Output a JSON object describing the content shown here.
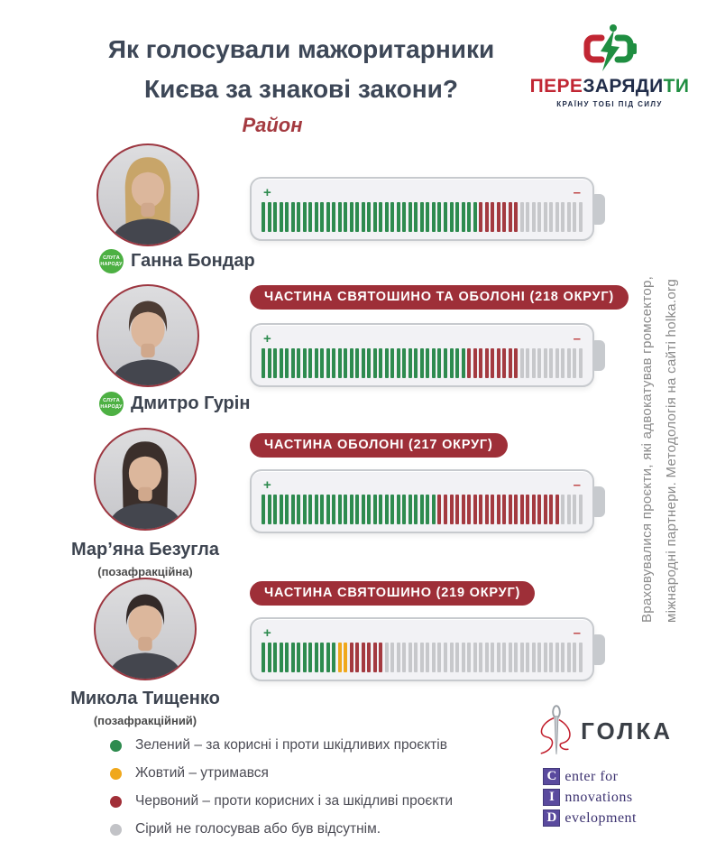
{
  "page": {
    "title_line1": "Як голосували мажоритарники",
    "title_line2": "Києва за знакові закони?",
    "region_label": "Район"
  },
  "brand": {
    "name_red": "ПЕРЕ",
    "name_dark": "ЗАРЯДИ",
    "name_green": "ТИ",
    "tagline": "КРАЇНУ ТОБІ ПІД СИЛУ"
  },
  "battery_signs": {
    "plus": "+",
    "minus": "–"
  },
  "deputies": [
    {
      "name": "Ганна Бондар",
      "badge": [
        "СЛУГА",
        "НАРОДУ"
      ],
      "district": "",
      "subtitle": "",
      "votes": {
        "green": 37,
        "yellow": 0,
        "red": 7,
        "gray": 11
      }
    },
    {
      "name": "Дмитро Гурін",
      "badge": [
        "СЛУГА",
        "НАРОДУ"
      ],
      "district": "ЧАСТИНА СВЯТОШИНО ТА ОБОЛОНІ (218 ОКРУГ)",
      "subtitle": "",
      "votes": {
        "green": 35,
        "yellow": 0,
        "red": 9,
        "gray": 11
      }
    },
    {
      "name": "Мар’яна Безугла",
      "badge": null,
      "district": "ЧАСТИНА ОБОЛОНІ (217 ОКРУГ)",
      "subtitle": "(позафракційна)",
      "votes": {
        "green": 30,
        "yellow": 0,
        "red": 21,
        "gray": 4
      }
    },
    {
      "name": "Микола Тищенко",
      "badge": null,
      "district": "ЧАСТИНА СВЯТОШИНО (219 ОКРУГ)",
      "subtitle": "(позафракційний)",
      "votes": {
        "green": 13,
        "yellow": 2,
        "red": 6,
        "gray": 34
      }
    }
  ],
  "legend": [
    {
      "color": "#2e8b4f",
      "label": "Зелений – за корисні і проти шкідливих проєктів"
    },
    {
      "color": "#f0a81c",
      "label": "Жовтий – утримався"
    },
    {
      "color": "#a12f38",
      "label": "Червоний – проти корисних і за шкідливі проєкти"
    },
    {
      "color": "#c2c3c7",
      "label": "Сірий не голосував або був відсутнім."
    }
  ],
  "side_note": {
    "line1": "Враховувалися проєкти, які адвокатував громсектор,",
    "line2": "міжнародні партнери. Методологія на сайті holka.org"
  },
  "footer": {
    "holka_name": "ГОЛКА",
    "cid_rows": [
      {
        "letter": "C",
        "rest": "enter for"
      },
      {
        "letter": "I",
        "rest": "nnovations"
      },
      {
        "letter": "D",
        "rest": "evelopment"
      }
    ]
  },
  "colors": {
    "vote_green": "#2e8b4f",
    "vote_yellow": "#f0a81c",
    "vote_red": "#a43a40",
    "vote_gray": "#c7c8cb",
    "pill_bg": "#9e2f38",
    "title_text": "#3d4757",
    "brand_red": "#c12633",
    "brand_navy": "#202c49",
    "brand_green": "#1f8e41",
    "badge_green": "#4db043"
  },
  "chart_data": {
    "type": "bar",
    "orientation": "horizontal",
    "title": "Як голосували мажоритарники Києва за знакові закони?",
    "subtitle": "Район",
    "unit": "поділки батареї = голосування за знакові законопроєкти",
    "total_ticks_per_bar": 55,
    "categories": [
      "Ганна Бондар",
      "Дмитро Гурін (218 округ)",
      "Мар’яна Безугла (217 округ)",
      "Микола Тищенко (219 округ)"
    ],
    "series": [
      {
        "name": "Зелений – за корисні і проти шкідливих проєктів",
        "color": "#2e8b4f",
        "values": [
          37,
          35,
          30,
          13
        ]
      },
      {
        "name": "Жовтий – утримався",
        "color": "#f0a81c",
        "values": [
          0,
          0,
          0,
          2
        ]
      },
      {
        "name": "Червоний – проти корисних і за шкідливі проєкти",
        "color": "#a12f38",
        "values": [
          7,
          9,
          21,
          6
        ]
      },
      {
        "name": "Сірий не голосував або був відсутнім.",
        "color": "#c2c3c7",
        "values": [
          11,
          11,
          4,
          34
        ]
      }
    ],
    "legend_position": "bottom-left",
    "grid": false
  }
}
